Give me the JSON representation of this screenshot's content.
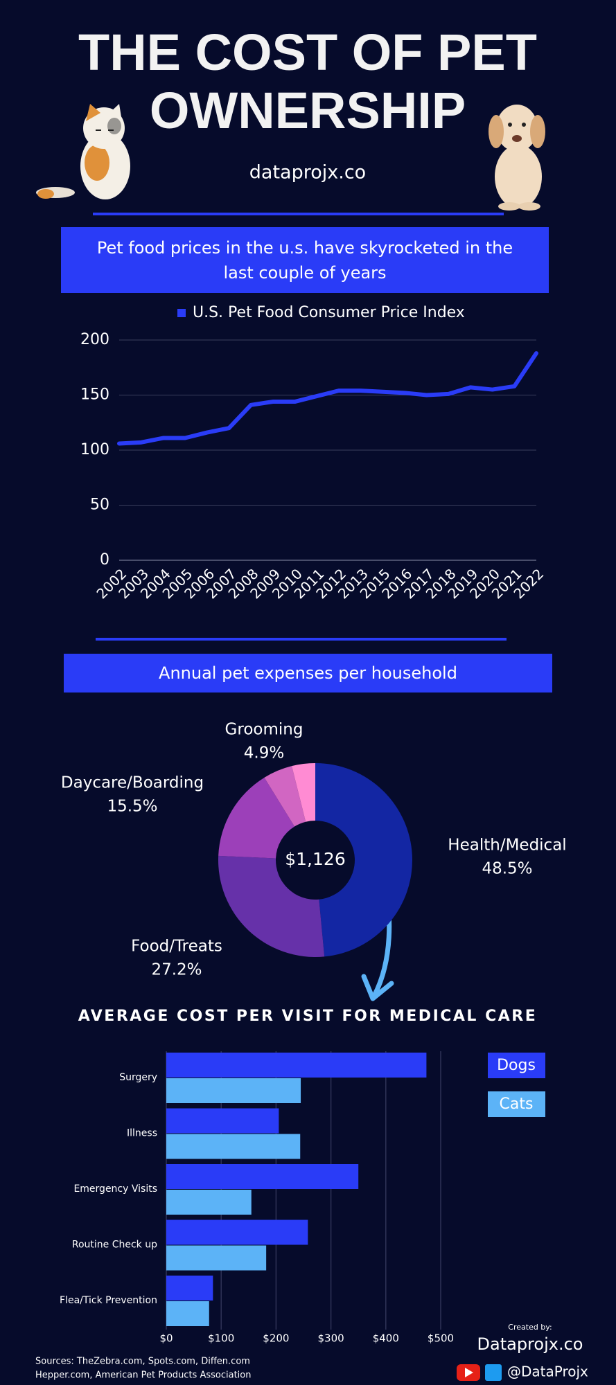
{
  "header": {
    "title": "THE COST OF PET OWNERSHIP",
    "site": "dataprojx.co",
    "banner_1": "Pet food prices in the u.s. have skyrocketed in the last couple of years",
    "banner_2": "Annual pet expenses per household"
  },
  "chart_data": [
    {
      "type": "line",
      "categories": [
        "2002",
        "2003",
        "2004",
        "2005",
        "2006",
        "2007",
        "2008",
        "2009",
        "2010",
        "2011",
        "2012",
        "2013",
        "2015",
        "2016",
        "2017",
        "2018",
        "2019",
        "2020",
        "2021",
        "2022"
      ],
      "series": [
        {
          "name": "U.S. Pet Food Consumer Price Index",
          "color": "#2a3cf7",
          "values": [
            106,
            107,
            111,
            111,
            116,
            120,
            141,
            144,
            144,
            149,
            154,
            154,
            153,
            152,
            150,
            151,
            157,
            155,
            158,
            188
          ]
        }
      ],
      "ylim": [
        0,
        200
      ],
      "yticks": [
        0,
        50,
        100,
        150,
        200
      ],
      "grid": true
    },
    {
      "type": "pie",
      "center_label": "$1,126",
      "categories": [
        "Health/Medical",
        "Food/Treats",
        "Daycare/Boarding",
        "Grooming",
        null
      ],
      "values": [
        48.5,
        27.2,
        15.5,
        4.9,
        3.9
      ],
      "value_labels": [
        "48.5%",
        "27.2%",
        "15.5%",
        "4.9%",
        null
      ],
      "colors": [
        "#1326a3",
        "#6631a9",
        "#9c40b9",
        "#d166c2",
        "#ff8bd3"
      ]
    },
    {
      "type": "hbar",
      "title": "AVERAGE COST PER VISIT FOR MEDICAL CARE",
      "categories": [
        "Surgery",
        "Illness",
        "Emergency Visits",
        "Routine Check up",
        "Flea/Tick Prevention"
      ],
      "series": [
        {
          "name": "Dogs",
          "color": "#2a3cf7",
          "values": [
            474,
            205,
            350,
            258,
            85
          ]
        },
        {
          "name": "Cats",
          "color": "#5cb3f7",
          "values": [
            245,
            244,
            155,
            182,
            78
          ]
        }
      ],
      "xlim": [
        0,
        500
      ],
      "xticks": [
        {
          "value": 0,
          "label": "$0"
        },
        {
          "value": 100,
          "label": "$100"
        },
        {
          "value": 200,
          "label": "$200"
        },
        {
          "value": 300,
          "label": "$300"
        },
        {
          "value": 400,
          "label": "$400"
        },
        {
          "value": 500,
          "label": "$500"
        }
      ],
      "grid": true,
      "legend": "top-right"
    }
  ],
  "footer": {
    "sources_1": "Sources: TheZebra.com, Spots.com, Diffen.com",
    "sources_2": "Hepper.com, American Pet Products Association",
    "created_by": "Created by:",
    "brand": "Dataprojx.co",
    "handle": "@DataProjx"
  }
}
